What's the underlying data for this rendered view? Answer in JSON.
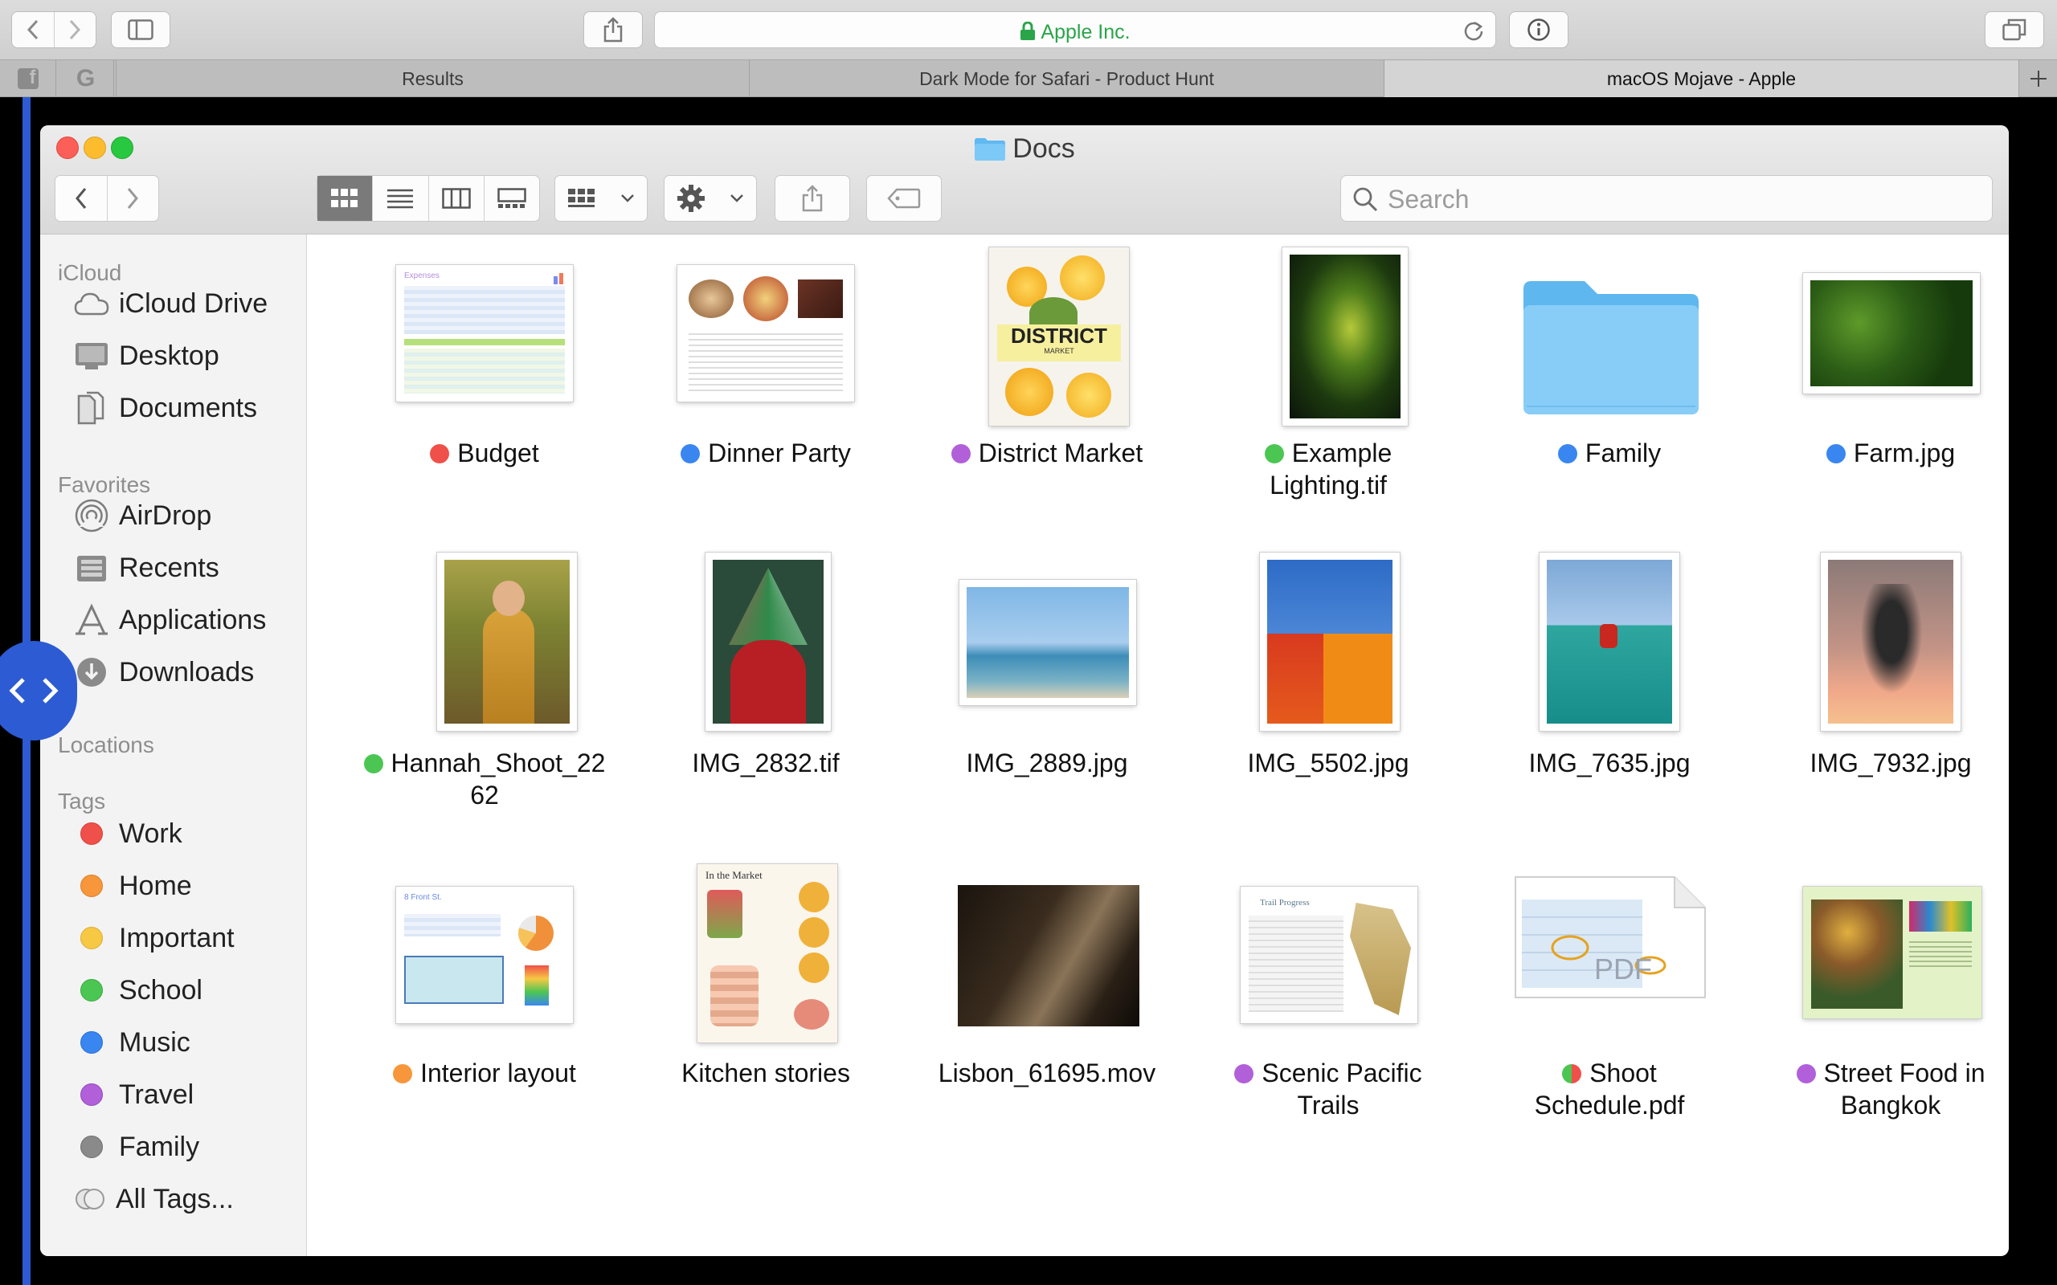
{
  "browser": {
    "address": "Apple Inc.",
    "tabs": [
      "Results",
      "Dark Mode for Safari - Product Hunt",
      "macOS Mojave - Apple"
    ],
    "pinned": [
      "f",
      "G"
    ]
  },
  "finder": {
    "title": "Docs",
    "search_placeholder": "Search",
    "sidebar": {
      "icloud": {
        "heading": "iCloud",
        "items": [
          {
            "label": "iCloud Drive",
            "icon": "cloud-icon"
          },
          {
            "label": "Desktop",
            "icon": "desktop-icon"
          },
          {
            "label": "Documents",
            "icon": "documents-icon"
          }
        ]
      },
      "favorites": {
        "heading": "Favorites",
        "items": [
          {
            "label": "AirDrop",
            "icon": "airdrop-icon"
          },
          {
            "label": "Recents",
            "icon": "recents-icon"
          },
          {
            "label": "Applications",
            "icon": "applications-icon"
          },
          {
            "label": "Downloads",
            "icon": "downloads-icon"
          }
        ]
      },
      "locations": {
        "heading": "Locations"
      },
      "tags": {
        "heading": "Tags",
        "items": [
          {
            "label": "Work",
            "color": "#f0504a"
          },
          {
            "label": "Home",
            "color": "#f7963a"
          },
          {
            "label": "Important",
            "color": "#f7c843"
          },
          {
            "label": "School",
            "color": "#4cc653"
          },
          {
            "label": "Music",
            "color": "#3a86f0"
          },
          {
            "label": "Travel",
            "color": "#b160d9"
          },
          {
            "label": "Family",
            "color": "#8a8a8a"
          },
          {
            "label": "All Tags...",
            "color": "multi"
          }
        ]
      }
    },
    "files": [
      {
        "line1": "Budget",
        "line2": "",
        "tags": [
          "#f0504a"
        ]
      },
      {
        "line1": "Dinner Party",
        "line2": "",
        "tags": [
          "#3a86f0"
        ]
      },
      {
        "line1": "District Market",
        "line2": "",
        "tags": [
          "#b160d9"
        ]
      },
      {
        "line1": "Example",
        "line2": "Lighting.tif",
        "tags": [
          "#4cc653"
        ]
      },
      {
        "line1": "Family",
        "line2": "",
        "tags": [
          "#3a86f0"
        ]
      },
      {
        "line1": "Farm.jpg",
        "line2": "",
        "tags": [
          "#3a86f0"
        ]
      },
      {
        "line1": "Hannah_Shoot_22",
        "line2": "62",
        "tags": [
          "#4cc653"
        ]
      },
      {
        "line1": "IMG_2832.tif",
        "line2": "",
        "tags": []
      },
      {
        "line1": "IMG_2889.jpg",
        "line2": "",
        "tags": []
      },
      {
        "line1": "IMG_5502.jpg",
        "line2": "",
        "tags": []
      },
      {
        "line1": "IMG_7635.jpg",
        "line2": "",
        "tags": []
      },
      {
        "line1": "IMG_7932.jpg",
        "line2": "",
        "tags": []
      },
      {
        "line1": "Interior layout",
        "line2": "",
        "tags": [
          "#f7963a"
        ]
      },
      {
        "line1": "Kitchen stories",
        "line2": "",
        "tags": []
      },
      {
        "line1": "Lisbon_61695.mov",
        "line2": "",
        "tags": []
      },
      {
        "line1": "Scenic Pacific",
        "line2": "Trails",
        "tags": [
          "#b160d9"
        ]
      },
      {
        "line1": "Shoot",
        "line2": "Schedule.pdf",
        "tags": [
          "#4cc653",
          "#f0504a"
        ]
      },
      {
        "line1": "Street Food in",
        "line2": "Bangkok",
        "tags": [
          "#b160d9"
        ]
      }
    ],
    "thumbnail_text": {
      "expenses": "Expenses",
      "district": "DISTRICT",
      "market": "MARKET",
      "in_the_market": "In the Market",
      "front_st": "8 Front St.",
      "trail_progress": "Trail Progress",
      "pdf": "PDF"
    }
  }
}
